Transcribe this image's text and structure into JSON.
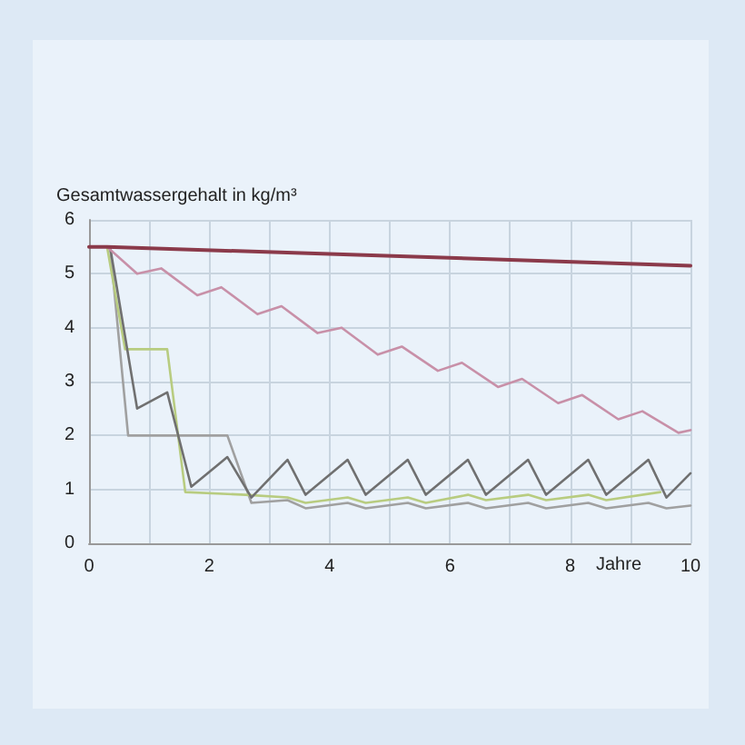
{
  "chart_data": {
    "type": "line",
    "ylabel": "Gesamtwassergehalt in kg/m³",
    "xlabel": "Jahre",
    "xlim": [
      0,
      10
    ],
    "ylim": [
      0,
      6
    ],
    "xticks": [
      0,
      {
        "value": 1,
        "label": null
      },
      2,
      {
        "value": 3,
        "label": null
      },
      4,
      {
        "value": 5,
        "label": null
      },
      6,
      {
        "value": 7,
        "label": null
      },
      8,
      {
        "value": 9,
        "label": null
      },
      10
    ],
    "yticks": [
      0,
      1,
      2,
      3,
      4,
      5,
      6
    ],
    "grid": true,
    "marker": "none",
    "line_style": "solid",
    "series": [
      {
        "color": "#8b3a4a",
        "x": [
          0,
          0.3,
          10
        ],
        "values": [
          5.5,
          5.5,
          5.15
        ]
      },
      {
        "color": "#c890a8",
        "x": [
          0,
          0.3,
          0.8,
          1.2,
          1.8,
          2.2,
          2.8,
          3.2,
          3.8,
          4.2,
          4.8,
          5.2,
          5.8,
          6.2,
          6.8,
          7.2,
          7.8,
          8.2,
          8.8,
          9.2,
          9.8,
          10
        ],
        "values": [
          5.5,
          5.5,
          5.0,
          5.1,
          4.6,
          4.75,
          4.25,
          4.4,
          3.9,
          4.0,
          3.5,
          3.65,
          3.2,
          3.35,
          2.9,
          3.05,
          2.6,
          2.75,
          2.3,
          2.45,
          2.05,
          2.1
        ]
      },
      {
        "color": "#707070",
        "x": [
          0,
          0.35,
          0.8,
          1.3,
          1.7,
          2.3,
          2.7,
          3.3,
          3.6,
          4.3,
          4.6,
          5.3,
          5.6,
          6.3,
          6.6,
          7.3,
          7.6,
          8.3,
          8.6,
          9.3,
          9.6,
          10
        ],
        "values": [
          5.5,
          5.5,
          2.5,
          2.8,
          1.05,
          1.6,
          0.85,
          1.55,
          0.9,
          1.55,
          0.9,
          1.55,
          0.9,
          1.55,
          0.9,
          1.55,
          0.9,
          1.55,
          0.9,
          1.55,
          0.85,
          1.3
        ]
      },
      {
        "color": "#b8cc80",
        "x": [
          0,
          0.3,
          0.6,
          1.3,
          1.6,
          2.6,
          3.3,
          3.6,
          4.3,
          4.6,
          5.3,
          5.6,
          6.3,
          6.6,
          7.3,
          7.6,
          8.3,
          8.6,
          9.5
        ],
        "values": [
          5.5,
          5.5,
          3.6,
          3.6,
          0.95,
          0.9,
          0.85,
          0.75,
          0.85,
          0.75,
          0.85,
          0.75,
          0.9,
          0.8,
          0.9,
          0.8,
          0.9,
          0.8,
          0.95
        ]
      },
      {
        "color": "#a0a0a0",
        "x": [
          0,
          0.35,
          0.65,
          2.3,
          2.7,
          3.3,
          3.6,
          4.3,
          4.6,
          5.3,
          5.6,
          6.3,
          6.6,
          7.3,
          7.6,
          8.3,
          8.6,
          9.3,
          9.6,
          10
        ],
        "values": [
          5.5,
          5.5,
          2.0,
          2.0,
          0.75,
          0.8,
          0.65,
          0.75,
          0.65,
          0.75,
          0.65,
          0.75,
          0.65,
          0.75,
          0.65,
          0.75,
          0.65,
          0.75,
          0.65,
          0.7
        ]
      }
    ]
  }
}
